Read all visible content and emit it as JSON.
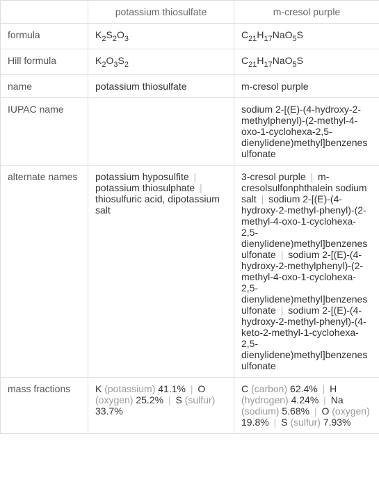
{
  "headers": {
    "compound1": "potassium thiosulfate",
    "compound2": "m-cresol purple"
  },
  "rows": {
    "formula": {
      "label": "formula",
      "c1_parts": [
        "K",
        "2",
        "S",
        "2",
        "O",
        "3"
      ],
      "c2_parts": [
        "C",
        "21",
        "H",
        "17",
        "NaO",
        "5",
        "S"
      ]
    },
    "hill": {
      "label": "Hill formula",
      "c1_parts": [
        "K",
        "2",
        "O",
        "3",
        "S",
        "2"
      ],
      "c2_parts": [
        "C",
        "21",
        "H",
        "17",
        "NaO",
        "5",
        "S"
      ]
    },
    "name": {
      "label": "name",
      "c1": "potassium thiosulfate",
      "c2": "m-cresol purple"
    },
    "iupac": {
      "label": "IUPAC name",
      "c1": "",
      "c2": "sodium 2-[(E)-(4-hydroxy-2-methylphenyl)-(2-methyl-4-oxo-1-cyclohexa-2,5-dienylidene)methyl]benzenesulfonate"
    },
    "alternate": {
      "label": "alternate names",
      "c1_items": [
        "potassium hyposulfite",
        "potassium thiosulphate",
        "thiosulfuric acid, dipotassium salt"
      ],
      "c2_items": [
        "3-cresol purple",
        "m-cresolsulfonphthalein sodium salt",
        "sodium 2-[(E)-(4-hydroxy-2-methyl-phenyl)-(2-methyl-4-oxo-1-cyclohexa-2,5-dienylidene)methyl]benzenesulfonate",
        "sodium 2-[(E)-(4-hydroxy-2-methylphenyl)-(2-methyl-4-oxo-1-cyclohexa-2,5-dienylidene)methyl]benzenesulfonate",
        "sodium 2-[(E)-(4-hydroxy-2-methyl-phenyl)-(4-keto-2-methyl-1-cyclohexa-2,5-dienylidene)methyl]benzenesulfonate"
      ]
    },
    "mass": {
      "label": "mass fractions",
      "c1_items": [
        {
          "sym": "K",
          "name": "(potassium)",
          "val": "41.1%"
        },
        {
          "sym": "O",
          "name": "(oxygen)",
          "val": "25.2%"
        },
        {
          "sym": "S",
          "name": "(sulfur)",
          "val": "33.7%"
        }
      ],
      "c2_items": [
        {
          "sym": "C",
          "name": "(carbon)",
          "val": "62.4%"
        },
        {
          "sym": "H",
          "name": "(hydrogen)",
          "val": "4.24%"
        },
        {
          "sym": "Na",
          "name": "(sodium)",
          "val": "5.68%"
        },
        {
          "sym": "O",
          "name": "(oxygen)",
          "val": "19.8%"
        },
        {
          "sym": "S",
          "name": "(sulfur)",
          "val": "7.93%"
        }
      ]
    }
  },
  "separator": "|",
  "colors": {
    "border": "#ddd",
    "text": "#333",
    "label": "#666",
    "faded": "#999"
  }
}
